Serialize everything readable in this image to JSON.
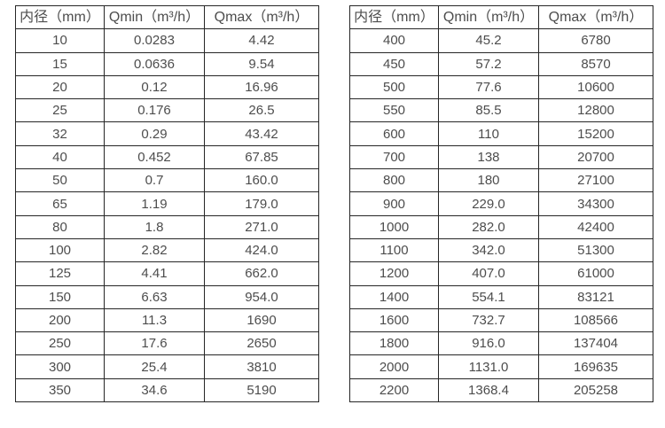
{
  "page": {
    "background_color": "#ffffff",
    "text_color": "#4d4d4d",
    "border_color": "#262626"
  },
  "tables": [
    {
      "headers": [
        "内径（mm）",
        "Qmin（m³/h）",
        "Qmax（m³/h）"
      ],
      "rows": [
        [
          "10",
          "0.0283",
          "4.42"
        ],
        [
          "15",
          "0.0636",
          "9.54"
        ],
        [
          "20",
          "0.12",
          "16.96"
        ],
        [
          "25",
          "0.176",
          "26.5"
        ],
        [
          "32",
          "0.29",
          "43.42"
        ],
        [
          "40",
          "0.452",
          "67.85"
        ],
        [
          "50",
          "0.7",
          "160.0"
        ],
        [
          "65",
          "1.19",
          "179.0"
        ],
        [
          "80",
          "1.8",
          "271.0"
        ],
        [
          "100",
          "2.82",
          "424.0"
        ],
        [
          "125",
          "4.41",
          "662.0"
        ],
        [
          "150",
          "6.63",
          "954.0"
        ],
        [
          "200",
          "11.3",
          "1690"
        ],
        [
          "250",
          "17.6",
          "2650"
        ],
        [
          "300",
          "25.4",
          "3810"
        ],
        [
          "350",
          "34.6",
          "5190"
        ]
      ]
    },
    {
      "headers": [
        "内径（mm）",
        "Qmin（m³/h）",
        "Qmax（m³/h）"
      ],
      "rows": [
        [
          "400",
          "45.2",
          "6780"
        ],
        [
          "450",
          "57.2",
          "8570"
        ],
        [
          "500",
          "77.6",
          "10600"
        ],
        [
          "550",
          "85.5",
          "12800"
        ],
        [
          "600",
          "110",
          "15200"
        ],
        [
          "700",
          "138",
          "20700"
        ],
        [
          "800",
          "180",
          "27100"
        ],
        [
          "900",
          "229.0",
          "34300"
        ],
        [
          "1000",
          "282.0",
          "42400"
        ],
        [
          "1100",
          "342.0",
          "51300"
        ],
        [
          "1200",
          "407.0",
          "61000"
        ],
        [
          "1400",
          "554.1",
          "83121"
        ],
        [
          "1600",
          "732.7",
          "108566"
        ],
        [
          "1800",
          "916.0",
          "137404"
        ],
        [
          "2000",
          "1131.0",
          "169635"
        ],
        [
          "2200",
          "1368.4",
          "205258"
        ]
      ]
    }
  ]
}
